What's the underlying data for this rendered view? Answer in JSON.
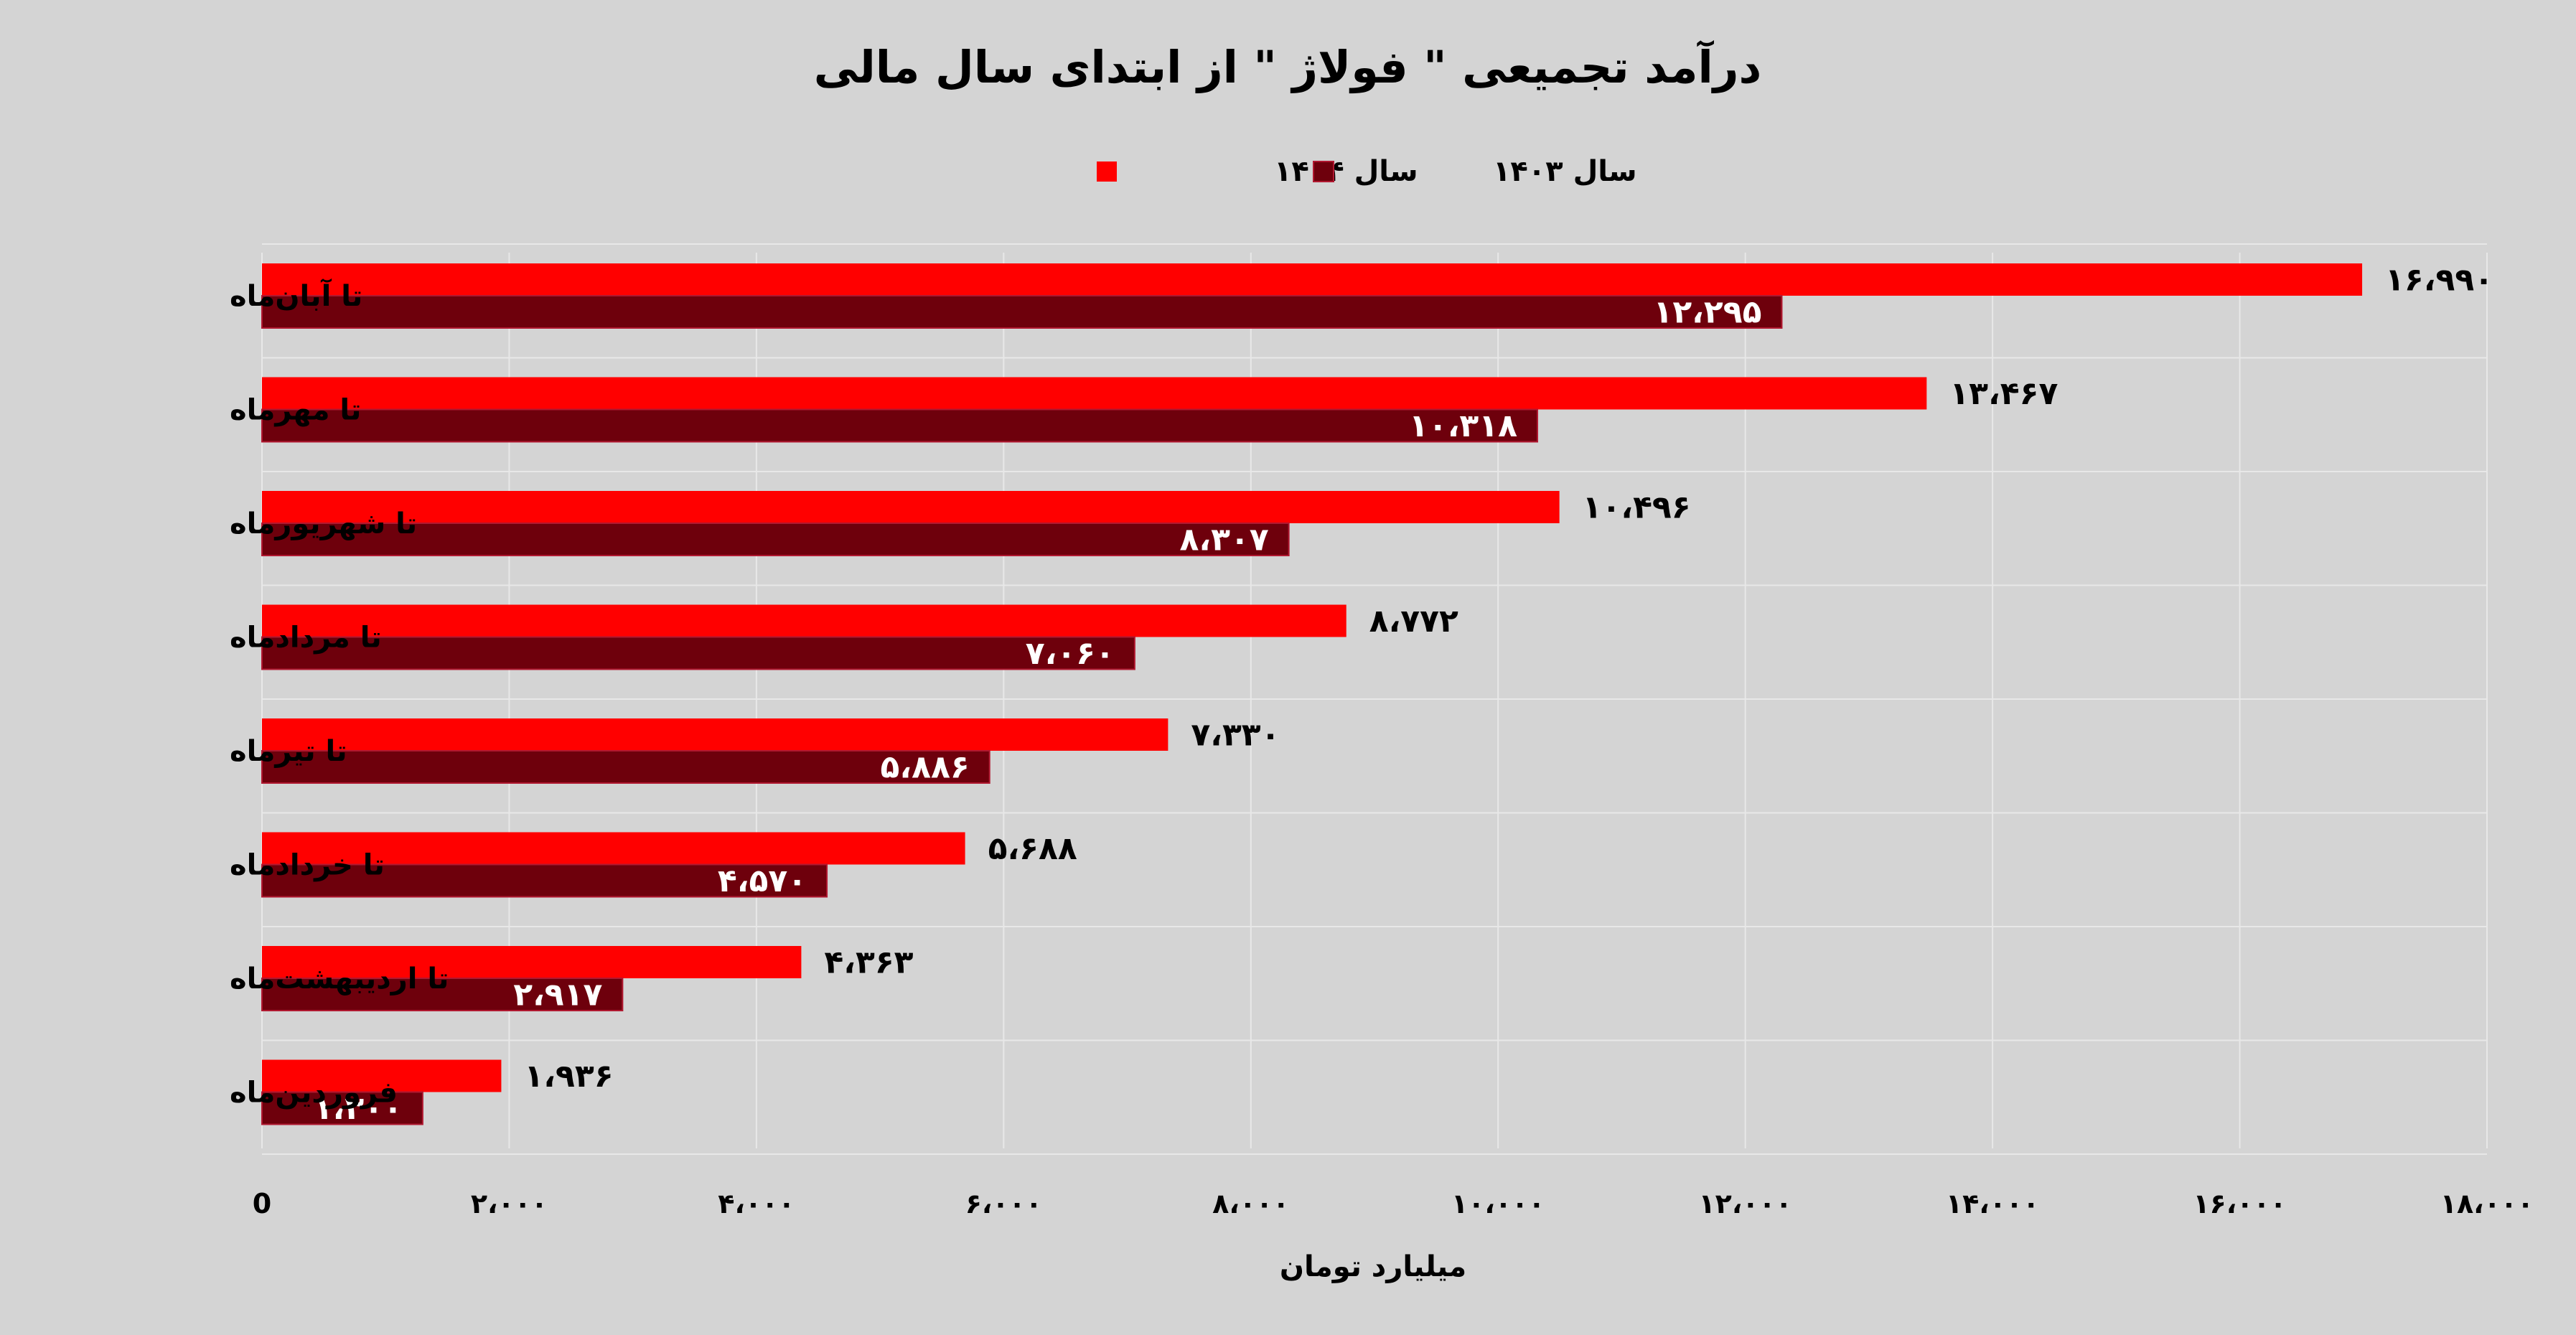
{
  "chart_data": {
    "type": "bar",
    "orientation": "horizontal",
    "title": "درآمد تجمیعی \" فولاژ \" از ابتدای سال مالی",
    "xlabel": "میلیارد تومان",
    "ylabel": "",
    "xlim": [
      0,
      18000
    ],
    "x_ticks": [
      0,
      2000,
      4000,
      6000,
      8000,
      10000,
      12000,
      14000,
      16000,
      18000
    ],
    "x_tick_labels": [
      "0",
      "۲،۰۰۰",
      "۴،۰۰۰",
      "۶،۰۰۰",
      "۸،۰۰۰",
      "۱۰،۰۰۰",
      "۱۲،۰۰۰",
      "۱۴،۰۰۰",
      "۱۶،۰۰۰",
      "۱۸،۰۰۰"
    ],
    "grid": true,
    "legend_position": "top-center",
    "categories": [
      "تا آبان‌ماه",
      "تا مهرماه",
      "تا شهریورماه",
      "تا مردادماه",
      "تا تیرماه",
      "تا خردادماه",
      "تا اردیبهشت‌ماه",
      "فروردین‌ماه"
    ],
    "series": [
      {
        "name": "سال ۱۴۰۴",
        "color": "#ff0000",
        "values": [
          16990,
          13467,
          10496,
          8772,
          7330,
          5688,
          4363,
          1936
        ],
        "labels": [
          "۱۶،۹۹۰",
          "۱۳،۴۶۷",
          "۱۰،۴۹۶",
          "۸،۷۷۲",
          "۷،۳۳۰",
          "۵،۶۸۸",
          "۴،۳۶۳",
          "۱،۹۳۶"
        ]
      },
      {
        "name": "سال ۱۴۰۳",
        "color": "#6e000c",
        "values": [
          12295,
          10318,
          8307,
          7060,
          5886,
          4570,
          2917,
          1300
        ],
        "labels": [
          "۱۲،۲۹۵",
          "۱۰،۳۱۸",
          "۸،۳۰۷",
          "۷،۰۶۰",
          "۵،۸۸۶",
          "۴،۵۷۰",
          "۲،۹۱۷",
          "۱،۳۰۰"
        ]
      }
    ]
  }
}
